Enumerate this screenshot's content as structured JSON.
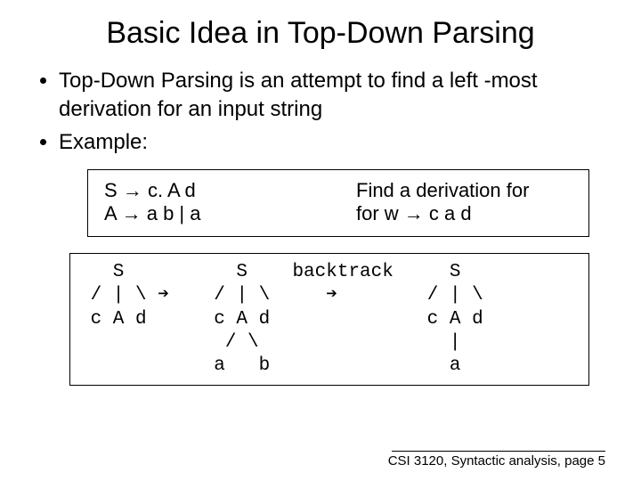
{
  "title": "Basic Idea in Top-Down Parsing",
  "bullets": [
    "Top-Down Parsing is an attempt to find a left -most derivation for an input string",
    "Example:"
  ],
  "grammar": {
    "rule1_lhs": "S",
    "rule1_rhs": "c. A d",
    "rule2_lhs": "A",
    "rule2_rhs": "a b | a",
    "arrow": "→",
    "find_line1": "Find a derivation for",
    "find_line2": "for w → c a d"
  },
  "derivation": {
    "type": "tree-diagram",
    "font_family": "Courier New",
    "font_size_pt": 16,
    "text_color": "#000000",
    "border_color": "#000000",
    "background_color": "#ffffff",
    "lines": [
      "   S          S    backtrack     S",
      " / | \\ ➔    / | \\     ➔        / | \\",
      " c A d      c A d              c A d",
      "             / \\                 |",
      "            a   b                a"
    ]
  },
  "footer": "CSI 3120, Syntactic analysis, page 5",
  "colors": {
    "background": "#ffffff",
    "text": "#000000",
    "border": "#000000"
  }
}
